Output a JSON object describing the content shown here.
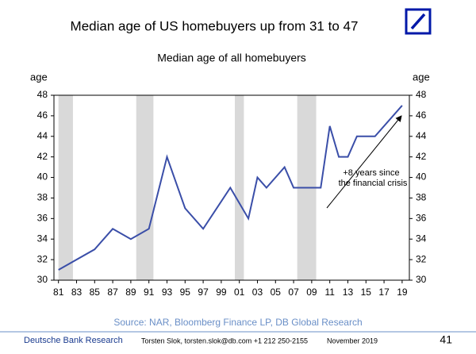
{
  "chart_data": {
    "type": "line",
    "title": "Median age of US homebuyers up from 31 to 47",
    "subtitle": "Median age of all homebuyers",
    "y_label": "age",
    "y2_label": "age",
    "x": [
      1981,
      1985,
      1987,
      1989,
      1991,
      1993,
      1995,
      1997,
      2000,
      2002,
      2003,
      2004,
      2006,
      2007,
      2008,
      2009,
      2010,
      2011,
      2012,
      2013,
      2014,
      2015,
      2016,
      2019
    ],
    "values": [
      31,
      33,
      35,
      34,
      35,
      42,
      37,
      35,
      39,
      36,
      40,
      39,
      41,
      39,
      39,
      39,
      39,
      45,
      42,
      42,
      44,
      44,
      44,
      47
    ],
    "color": "#3a4ea8",
    "recessions": [
      [
        1981,
        1982.6
      ],
      [
        1989.6,
        1991.5
      ],
      [
        2000.5,
        2001.5
      ],
      [
        2007.4,
        2009.5
      ]
    ],
    "recession_color": "#d9d9d9",
    "xlim": [
      1980.5,
      2019.8
    ],
    "xticks": [
      {
        "value": 1981,
        "label": "81"
      },
      {
        "value": 1983,
        "label": "83"
      },
      {
        "value": 1985,
        "label": "85"
      },
      {
        "value": 1987,
        "label": "87"
      },
      {
        "value": 1989,
        "label": "89"
      },
      {
        "value": 1991,
        "label": "91"
      },
      {
        "value": 1993,
        "label": "93"
      },
      {
        "value": 1995,
        "label": "95"
      },
      {
        "value": 1997,
        "label": "97"
      },
      {
        "value": 1999,
        "label": "99"
      },
      {
        "value": 2001,
        "label": "01"
      },
      {
        "value": 2003,
        "label": "03"
      },
      {
        "value": 2005,
        "label": "05"
      },
      {
        "value": 2007,
        "label": "07"
      },
      {
        "value": 2009,
        "label": "09"
      },
      {
        "value": 2011,
        "label": "11"
      },
      {
        "value": 2013,
        "label": "13"
      },
      {
        "value": 2015,
        "label": "15"
      },
      {
        "value": 2017,
        "label": "17"
      },
      {
        "value": 2019,
        "label": "19"
      }
    ],
    "ylim": [
      30,
      48
    ],
    "yticks": [
      30,
      32,
      34,
      36,
      38,
      40,
      42,
      44,
      46,
      48
    ],
    "y2lim": [
      30,
      48
    ],
    "y2ticks": [
      30,
      32,
      34,
      36,
      38,
      40,
      42,
      44,
      46,
      48
    ],
    "annotation": [
      "+8 years since",
      "the financial crisis"
    ],
    "source": "Source: NAR, Bloomberg Finance LP, DB Global Research"
  },
  "footer": {
    "brand": "Deutsche Bank Research",
    "author": "Torsten Slok, torsten.slok@db.com +1 212 250-2155",
    "date": "November 2019",
    "page": "41"
  }
}
